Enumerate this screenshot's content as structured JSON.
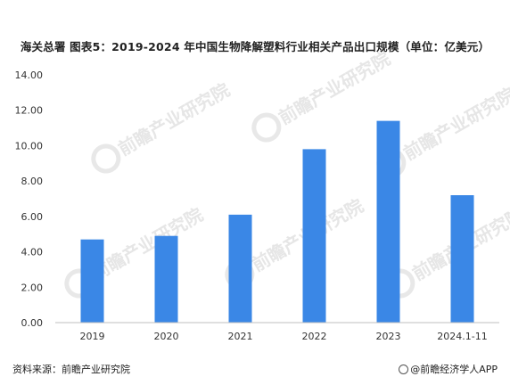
{
  "title": "海关总署  图表5：2019-2024 年中国生物降解塑料行业相关产品出口规模（单位：亿美元）",
  "source": "资料来源：前瞻产业研究院",
  "credit": "@前瞻经济学人APP",
  "watermark": "前瞻产业研究院",
  "colors": {
    "bar": "#3A87E6",
    "axis": "#bfbfbf",
    "text": "#333333"
  },
  "chart_data": {
    "type": "bar",
    "categories": [
      "2019",
      "2020",
      "2021",
      "2022",
      "2023",
      "2024.1-11"
    ],
    "values": [
      4.7,
      4.9,
      6.1,
      9.8,
      11.4,
      7.2
    ],
    "ylim": [
      0,
      14
    ],
    "yticks": [
      "0.00",
      "2.00",
      "4.00",
      "6.00",
      "8.00",
      "10.00",
      "12.00",
      "14.00"
    ],
    "ylabel": "",
    "xlabel": "",
    "grid": false
  }
}
